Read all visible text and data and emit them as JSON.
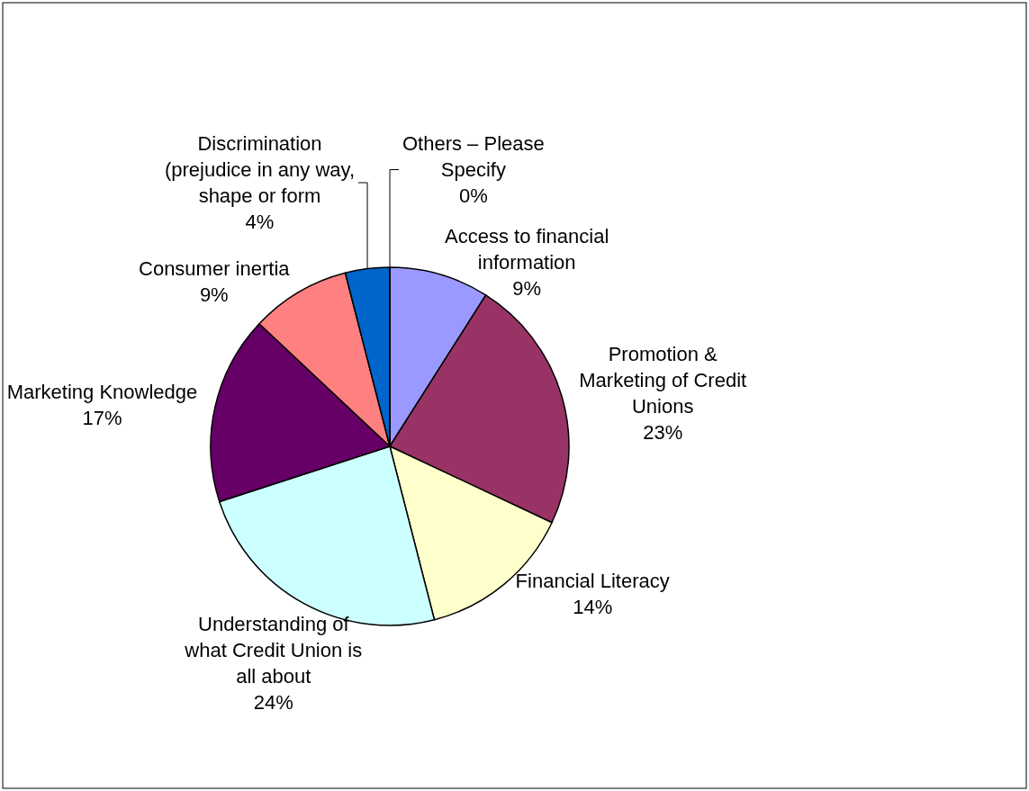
{
  "chart_data": {
    "type": "pie",
    "categories": [
      "Access to financial information",
      "Promotion & Marketing of Credit Unions",
      "Financial Literacy",
      "Understanding of what Credit Union is all about",
      "Marketing Knowledge",
      "Consumer inertia",
      "Discrimination (prejudice in any way, shape or form",
      "Others – Please Specify"
    ],
    "values": [
      9,
      23,
      14,
      24,
      17,
      9,
      4,
      0
    ],
    "colors": [
      "#9999ff",
      "#993366",
      "#ffffcc",
      "#ccffff",
      "#660066",
      "#ff8080",
      "#0066cc",
      "#ccccff"
    ],
    "value_labels": [
      "9%",
      "23%",
      "14%",
      "24%",
      "17%",
      "9%",
      "4%",
      "0%"
    ],
    "data_labels": true,
    "legend": false
  }
}
